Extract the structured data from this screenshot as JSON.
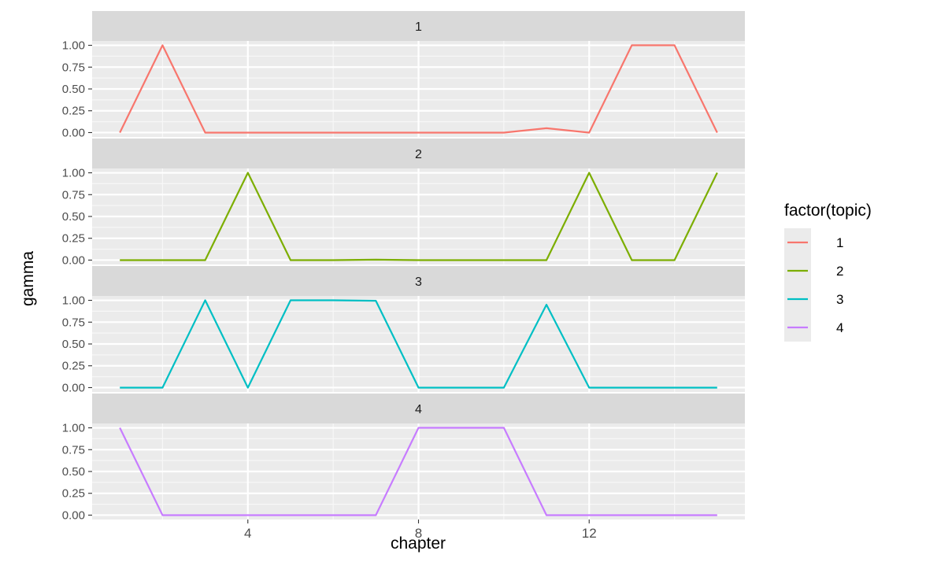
{
  "chart_data": {
    "type": "line",
    "facet_by": "topic",
    "xlabel": "chapter",
    "ylabel": "gamma",
    "xlim": [
      0.35,
      15.65
    ],
    "ylim": [
      -0.05,
      1.05
    ],
    "x_ticks": [
      4,
      8,
      12
    ],
    "y_ticks": [
      "0.00",
      "0.25",
      "0.50",
      "0.75",
      "1.00"
    ],
    "grid": true,
    "legend": {
      "title": "factor(topic)",
      "placement": "right"
    },
    "x": [
      1,
      2,
      3,
      4,
      5,
      6,
      7,
      8,
      9,
      10,
      11,
      12,
      13,
      14,
      15
    ],
    "panels": [
      {
        "label": "1",
        "color": "#F8766D",
        "values": [
          0,
          1,
          0,
          0,
          0,
          0,
          0,
          0,
          0,
          0,
          0.05,
          0,
          1,
          1,
          0
        ]
      },
      {
        "label": "2",
        "color": "#7CAE00",
        "values": [
          0,
          0,
          0,
          1,
          0,
          0,
          0.005,
          0,
          0,
          0,
          0,
          1,
          0,
          0,
          1
        ]
      },
      {
        "label": "3",
        "color": "#00BFC4",
        "values": [
          0,
          0,
          1,
          0,
          1,
          1,
          0.995,
          0,
          0,
          0,
          0.95,
          0,
          0,
          0,
          0
        ]
      },
      {
        "label": "4",
        "color": "#C77CFF",
        "values": [
          1,
          0,
          0,
          0,
          0,
          0,
          0,
          1,
          1,
          1,
          0,
          0,
          0,
          0,
          0
        ]
      }
    ]
  }
}
